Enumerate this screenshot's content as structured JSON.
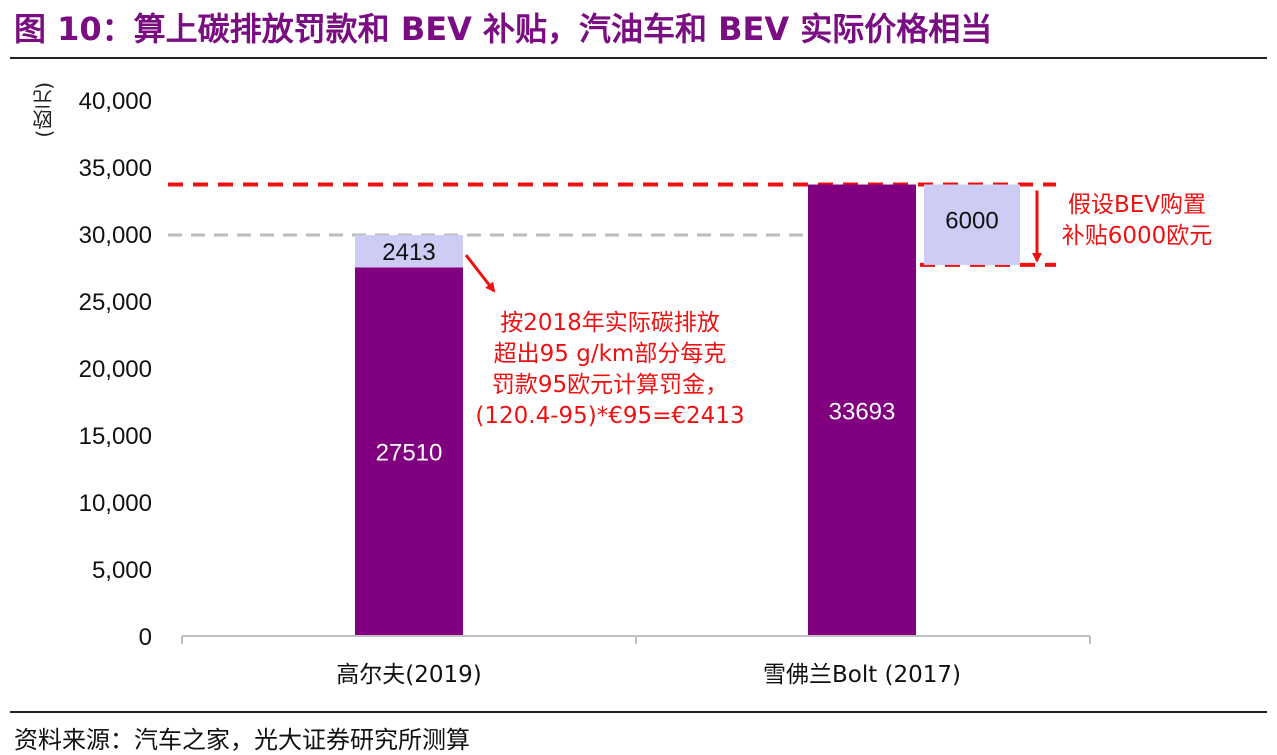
{
  "figure": {
    "title": "图 10：算上碳排放罚款和 BEV 补贴，汽油车和 BEV 实际价格相当",
    "source": "资料来源：汽车之家，光大证券研究所测算"
  },
  "colors": {
    "title": "#7b0d82",
    "base_bar": "#800080",
    "adjust_bar": "#ccccf5",
    "annotation": "#ee1111",
    "reference_line": "#bbbbbb"
  },
  "chart_data": {
    "type": "bar",
    "stacked": true,
    "ylabel": "(欧元)",
    "ylim": [
      0,
      40000
    ],
    "yticks": [
      0,
      5000,
      10000,
      15000,
      20000,
      25000,
      30000,
      35000,
      40000
    ],
    "ytick_labels": [
      "0",
      "5,000",
      "10,000",
      "15,000",
      "20,000",
      "25,000",
      "30,000",
      "35,000",
      "40,000"
    ],
    "categories": [
      "高尔夫(2019)",
      "雪佛兰Bolt (2017)"
    ],
    "bars": [
      {
        "category": "高尔夫(2019)",
        "base": 27510,
        "base_label": "27510",
        "addon": 2413,
        "addon_label": "2413"
      },
      {
        "category": "雪佛兰Bolt (2017)",
        "base": 33693,
        "base_label": "33693",
        "addon": 6000,
        "addon_label": "6000",
        "addon_side": "right",
        "addon_hangs_from": 33693
      }
    ],
    "reference_lines": [
      {
        "y": 29923,
        "style": "dashed",
        "color": "#bbbbbb"
      },
      {
        "y": 33693,
        "style": "dashed",
        "color": "#ee1111"
      },
      {
        "y": 27693,
        "style": "dashed",
        "color": "#ee1111"
      }
    ],
    "annotations": {
      "carbon_fine": "按2018年实际碳排放\n超出95 g/km部分每克\n罚款95欧元计算罚金，\n(120.4-95)*€95=€2413",
      "bev_subsidy": "假设BEV购置\n补贴6000欧元"
    },
    "grid": false,
    "legend": "none"
  }
}
